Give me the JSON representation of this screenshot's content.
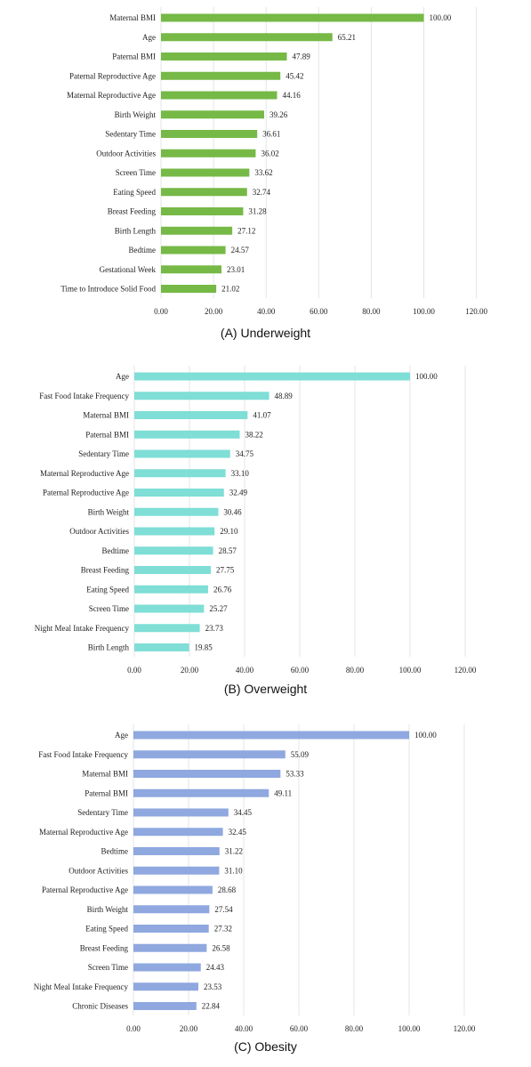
{
  "chart_data": [
    {
      "type": "bar",
      "orientation": "horizontal",
      "caption": "(A) Underweight",
      "color": "#76b947",
      "xlim": [
        0,
        120
      ],
      "ticks": [
        "0.00",
        "20.00",
        "40.00",
        "60.00",
        "80.00",
        "100.00",
        "120.00"
      ],
      "categories": [
        "Maternal BMI",
        "Age",
        "Paternal BMI",
        "Paternal Reproductive Age",
        "Maternal Reproductive Age",
        "Birth Weight",
        "Sedentary Time",
        "Outdoor Activities",
        "Screen Time",
        "Eating Speed",
        "Breast Feeding",
        "Birth Length",
        "Bedtime",
        "Gestational Week",
        "Time to Introduce Solid Food"
      ],
      "values": [
        100.0,
        65.21,
        47.89,
        45.42,
        44.16,
        39.26,
        36.61,
        36.02,
        33.62,
        32.74,
        31.28,
        27.12,
        24.57,
        23.01,
        21.02
      ],
      "value_labels": [
        "100.00",
        "65.21",
        "47.89",
        "45.42",
        "44.16",
        "39.26",
        "36.61",
        "36.02",
        "33.62",
        "32.74",
        "31.28",
        "27.12",
        "24.57",
        "23.01",
        "21.02"
      ]
    },
    {
      "type": "bar",
      "orientation": "horizontal",
      "caption": "(B) Overweight",
      "color": "#7fded6",
      "xlim": [
        0,
        120
      ],
      "ticks": [
        "0.00",
        "20.00",
        "40.00",
        "60.00",
        "80.00",
        "100.00",
        "120.00"
      ],
      "categories": [
        "Age",
        "Fast Food Intake Frequency",
        "Maternal BMI",
        "Paternal BMI",
        "Sedentary Time",
        "Maternal Reproductive Age",
        "Paternal Reproductive Age",
        "Birth Weight",
        "Outdoor Activities",
        "Bedtime",
        "Breast Feeding",
        "Eating Speed",
        "Screen Time",
        "Night Meal Intake Frequency",
        "Birth Length"
      ],
      "values": [
        100.0,
        48.89,
        41.07,
        38.22,
        34.75,
        33.1,
        32.49,
        30.46,
        29.1,
        28.57,
        27.75,
        26.76,
        25.27,
        23.73,
        19.85
      ],
      "value_labels": [
        "100.00",
        "48.89",
        "41.07",
        "38.22",
        "34.75",
        "33.10",
        "32.49",
        "30.46",
        "29.10",
        "28.57",
        "27.75",
        "26.76",
        "25.27",
        "23.73",
        "19.85"
      ]
    },
    {
      "type": "bar",
      "orientation": "horizontal",
      "caption": "(C) Obesity",
      "color": "#8fa8df",
      "xlim": [
        0,
        120
      ],
      "ticks": [
        "0.00",
        "20.00",
        "40.00",
        "60.00",
        "80.00",
        "100.00",
        "120.00"
      ],
      "categories": [
        "Age",
        "Fast Food Intake Frequency",
        "Maternal BMI",
        "Paternal BMI",
        "Sedentary Time",
        "Maternal Reproductive Age",
        "Bedtime",
        "Outdoor Activities",
        "Paternal Reproductive Age",
        "Birth Weight",
        "Eating Speed",
        "Breast Feeding",
        "Screen Time",
        "Night Meal Intake Frequency",
        "Chronic Diseases"
      ],
      "values": [
        100.0,
        55.09,
        53.33,
        49.11,
        34.45,
        32.45,
        31.22,
        31.1,
        28.68,
        27.54,
        27.32,
        26.58,
        24.43,
        23.53,
        22.84
      ],
      "value_labels": [
        "100.00",
        "55.09",
        "53.33",
        "49.11",
        "34.45",
        "32.45",
        "31.22",
        "31.10",
        "28.68",
        "27.54",
        "27.32",
        "26.58",
        "24.43",
        "23.53",
        "22.84"
      ]
    }
  ]
}
